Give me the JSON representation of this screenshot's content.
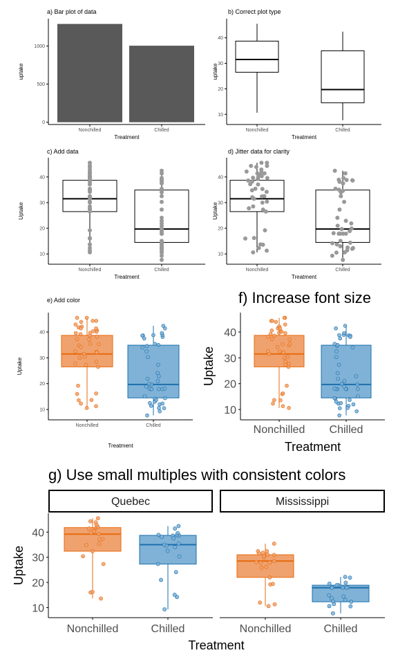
{
  "colors": {
    "bar_fill": "#595959",
    "nonchilled": "#E66A0E",
    "chilled": "#1B6FAD",
    "nonchilled_fill": "#F0A26E",
    "chilled_fill": "#7FB2D6",
    "jitter_gray": "#999999",
    "axis": "#000000",
    "tick_label": "#4D4D4D"
  },
  "chart_data": [
    {
      "panel": "a",
      "type": "bar",
      "title": "a) Bar plot of data",
      "xlabel": "Treatment",
      "ylabel": "uptake",
      "categories": [
        "Nonchilled",
        "Chilled"
      ],
      "values": [
        1291,
        1005
      ],
      "ylim": [
        -30,
        1360
      ],
      "yticks": [
        0,
        500,
        1000
      ],
      "grid": false
    },
    {
      "panel": "b",
      "type": "box",
      "title": "b) Correct plot type",
      "xlabel": "Treatment",
      "ylabel": "uptake",
      "categories": [
        "Nonchilled",
        "Chilled"
      ],
      "boxes": [
        {
          "min": 10.6,
          "q1": 26.5,
          "median": 31.5,
          "q3": 38.7,
          "max": 45.5
        },
        {
          "min": 7.7,
          "q1": 14.5,
          "median": 19.7,
          "q3": 34.9,
          "max": 42.4
        }
      ],
      "ylim": [
        6,
        47.5
      ],
      "yticks": [
        10,
        20,
        30,
        40
      ],
      "grid": false
    },
    {
      "panel": "c",
      "type": "box",
      "title": "c) Add data",
      "xlabel": "Treatment",
      "ylabel": "Uptake",
      "categories": [
        "Nonchilled",
        "Chilled"
      ],
      "boxes": [
        {
          "min": 10.6,
          "q1": 26.5,
          "median": 31.5,
          "q3": 38.7,
          "max": 45.5
        },
        {
          "min": 7.7,
          "q1": 14.5,
          "median": 19.7,
          "q3": 34.9,
          "max": 42.4
        }
      ],
      "points": [
        [
          16.0,
          30.4,
          34.8,
          37.2,
          35.3,
          39.2,
          39.7,
          13.6,
          27.3,
          37.1,
          41.8,
          40.6,
          41.4,
          44.3,
          16.2,
          32.4,
          40.3,
          42.1,
          42.9,
          43.9,
          45.5,
          32.5,
          38.6,
          41.4,
          44.3,
          45.5,
          13.7,
          12.3,
          11.3,
          34.2,
          31.5,
          28.5,
          19.2,
          10.6,
          27.8,
          32.1,
          35.4,
          38.2,
          39.6,
          40.1,
          30.0,
          26.5
        ],
        [
          14.2,
          24.1,
          30.3,
          34.6,
          32.5,
          35.4,
          38.7,
          9.3,
          27.3,
          35.0,
          38.8,
          38.6,
          37.5,
          42.4,
          15.1,
          21.0,
          38.1,
          34.0,
          38.9,
          39.6,
          41.4,
          10.5,
          12.0,
          19.7,
          21.9,
          22.9,
          17.9,
          17.9,
          7.7,
          11.4,
          12.3,
          13.0,
          12.5,
          13.7,
          10.6,
          18.0,
          17.9,
          17.9,
          18.9,
          19.9,
          18.1,
          14.4
        ]
      ],
      "ylim": [
        6,
        47.5
      ],
      "yticks": [
        10,
        20,
        30,
        40
      ],
      "grid": false
    },
    {
      "panel": "d",
      "type": "box",
      "title": "d) Jitter data for clarity",
      "xlabel": "Treatment",
      "ylabel": "Uptake",
      "categories": [
        "Nonchilled",
        "Chilled"
      ],
      "boxes": [
        {
          "min": 10.6,
          "q1": 26.5,
          "median": 31.5,
          "q3": 38.7,
          "max": 45.5
        },
        {
          "min": 7.7,
          "q1": 14.5,
          "median": 19.7,
          "q3": 34.9,
          "max": 42.4
        }
      ],
      "ylim": [
        6,
        47.5
      ],
      "yticks": [
        10,
        20,
        30,
        40
      ],
      "grid": false
    },
    {
      "panel": "e",
      "type": "box",
      "title": "e) Add color",
      "xlabel": "Treatment",
      "ylabel": "Uptake",
      "categories": [
        "Nonchilled",
        "Chilled"
      ],
      "boxes": [
        {
          "min": 10.6,
          "q1": 26.5,
          "median": 31.5,
          "q3": 38.7,
          "max": 45.5
        },
        {
          "min": 7.7,
          "q1": 14.5,
          "median": 19.7,
          "q3": 34.9,
          "max": 42.4
        }
      ],
      "ylim": [
        6,
        47.5
      ],
      "yticks": [
        10,
        20,
        30,
        40
      ],
      "grid": false
    },
    {
      "panel": "f",
      "type": "box",
      "title": "f) Increase font size",
      "xlabel": "Treatment",
      "ylabel": "Uptake",
      "categories": [
        "Nonchilled",
        "Chilled"
      ],
      "boxes": [
        {
          "min": 10.6,
          "q1": 26.5,
          "median": 31.5,
          "q3": 38.7,
          "max": 45.5
        },
        {
          "min": 7.7,
          "q1": 14.5,
          "median": 19.7,
          "q3": 34.9,
          "max": 42.4
        }
      ],
      "ylim": [
        6,
        47.5
      ],
      "yticks": [
        10,
        20,
        30,
        40
      ],
      "grid": false
    },
    {
      "panel": "g",
      "type": "box",
      "title": "g) Use small multiples with consistent colors",
      "xlabel": "Treatment",
      "ylabel": "Uptake",
      "categories": [
        "Nonchilled",
        "Chilled"
      ],
      "facets": [
        {
          "name": "Quebec",
          "boxes": [
            {
              "min": 13.6,
              "q1": 32.4,
              "median": 39.2,
              "q3": 41.8,
              "max": 45.5
            },
            {
              "min": 9.3,
              "q1": 27.3,
              "median": 35.0,
              "q3": 38.7,
              "max": 42.4
            }
          ],
          "points": [
            [
              16.0,
              30.4,
              34.8,
              37.2,
              35.3,
              39.2,
              39.7,
              13.6,
              27.3,
              37.1,
              41.8,
              40.6,
              41.4,
              44.3,
              16.2,
              32.4,
              40.3,
              42.1,
              42.9,
              43.9,
              45.5
            ],
            [
              14.2,
              24.1,
              30.3,
              34.6,
              32.5,
              35.4,
              38.7,
              9.3,
              27.3,
              35.0,
              38.8,
              38.6,
              37.5,
              42.4,
              15.1,
              21.0,
              38.1,
              34.0,
              38.9,
              39.6,
              41.4
            ]
          ]
        },
        {
          "name": "Mississippi",
          "boxes": [
            {
              "min": 10.6,
              "q1": 22.0,
              "median": 28.5,
              "q3": 31.0,
              "max": 35.4
            },
            {
              "min": 7.7,
              "q1": 12.3,
              "median": 17.9,
              "q3": 18.9,
              "max": 22.2
            }
          ],
          "points": [
            [
              10.6,
              19.2,
              26.2,
              30.0,
              30.9,
              32.4,
              35.4,
              12.0,
              22.0,
              30.6,
              31.8,
              32.4,
              31.1,
              31.5,
              11.3,
              19.4,
              25.8,
              27.9,
              28.5,
              28.1,
              27.8
            ],
            [
              10.5,
              14.9,
              18.1,
              18.9,
              19.5,
              22.2,
              21.9,
              7.7,
              11.4,
              12.3,
              13.0,
              12.5,
              13.7,
              14.4,
              10.6,
              18.0,
              17.9,
              17.9,
              17.9,
              18.9,
              19.9
            ]
          ]
        }
      ],
      "ylim": [
        6,
        47.5
      ],
      "yticks": [
        10,
        20,
        30,
        40
      ],
      "grid": false
    }
  ]
}
